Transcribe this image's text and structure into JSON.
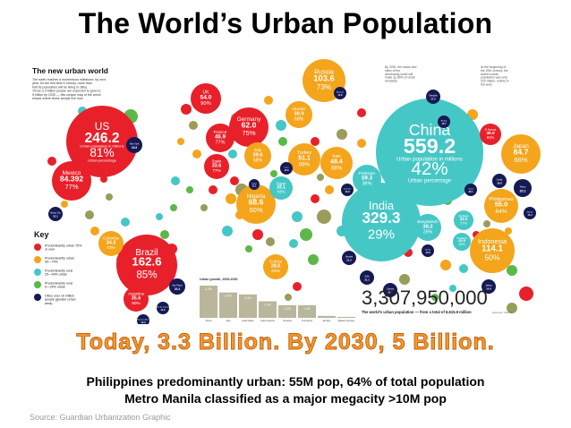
{
  "slide": {
    "title": "The World’s Urban Population",
    "headline": "Today, 3.3 Billion. By 2030, 5 Billion.",
    "line1": "Philippines predominantly urban: 55M pop, 64% of total population",
    "line2": "Metro Manila classified as a major megacity >10M pop",
    "source": "Source: Guardian Urbanization Graphic"
  },
  "figure": {
    "title": "The new urban world",
    "intro": "The earth reaches a momentous milestone: by next year, for the first time in history, more than half its population will be living in cities. Those 3.3 billion people are expected to grow to 5 billion by 2030 — this unique map of the world shows where those people live now",
    "note_left": "By 2030, the towns and cities of the developing world will make up 80% of urban humanity",
    "note_right": "At the beginning of the 20th century, the world's urban population was only 220 million, mainly in the west",
    "total": "3,307,950,000",
    "total_caption": "The world's urban population — from a total of 6,615.9 million",
    "credit": "Sources: UNFPA",
    "colors": {
      "u75": "#e8202a",
      "u50": "#f4a51c",
      "r25": "#45c7c6",
      "r0": "#5bb848",
      "mega": "#151a55",
      "small": "#9a9c5c"
    },
    "key": {
      "title": "Key",
      "items": [
        {
          "label": "Predominantly urban 75% or over",
          "color": "#e8202a"
        },
        {
          "label": "Predominantly urban 50—74%",
          "color": "#f4a51c"
        },
        {
          "label": "Predominantly rural 25—49% urban",
          "color": "#45c7c6"
        },
        {
          "label": "Predominantly rural 0—24% urban",
          "color": "#5bb848"
        },
        {
          "label": "Cities over 10 million people (greater urban area)",
          "color": "#151a55"
        }
      ]
    },
    "countries": [
      {
        "name": "China",
        "value": "559.2",
        "pct": "42%",
        "color": "#45c7c6",
        "caption": "Urban population in millions",
        "cap2": "Urban percentage"
      },
      {
        "name": "India",
        "value": "329.3",
        "pct": "29%",
        "color": "#45c7c6"
      },
      {
        "name": "US",
        "value": "246.2",
        "pct": "81%",
        "color": "#e8202a",
        "caption": "Urban population in millions",
        "cap2": "Urban percentage"
      },
      {
        "name": "Brazil",
        "value": "162.6",
        "pct": "85%",
        "color": "#e8202a"
      },
      {
        "name": "Russia",
        "value": "103.6",
        "pct": "73%",
        "color": "#f4a51c"
      },
      {
        "name": "Indonesia",
        "value": "114.1",
        "pct": "50%",
        "color": "#f4a51c"
      },
      {
        "name": "Mexico",
        "value": "84.392",
        "pct": "77%",
        "color": "#e8202a"
      },
      {
        "name": "Japan",
        "value": "84.7",
        "pct": "66%",
        "color": "#f4a51c"
      },
      {
        "name": "Germany",
        "value": "62.0",
        "pct": "75%",
        "color": "#e8202a"
      },
      {
        "name": "Nigeria",
        "value": "68.6",
        "pct": "50%",
        "color": "#f4a51c"
      },
      {
        "name": "Philippines",
        "value": "55.0",
        "pct": "64%",
        "color": "#f4a51c"
      },
      {
        "name": "UK",
        "value": "54.0",
        "pct": "90%",
        "color": "#e8202a"
      },
      {
        "name": "Turkey",
        "value": "51.1",
        "pct": "68%",
        "color": "#f4a51c"
      },
      {
        "name": "Iran",
        "value": "48.4",
        "pct": "68%",
        "color": "#f4a51c"
      },
      {
        "name": "France",
        "value": "46.9",
        "pct": "77%",
        "color": "#e8202a"
      },
      {
        "name": "Pakistan",
        "value": "59.3",
        "pct": "36%",
        "color": "#45c7c6"
      },
      {
        "name": "Bangladesh",
        "value": "38.2",
        "pct": "26%",
        "color": "#45c7c6"
      },
      {
        "name": "Italy",
        "value": "39.6",
        "pct": "68%",
        "color": "#f4a51c"
      },
      {
        "name": "Spain",
        "value": "33.6",
        "pct": "77%",
        "color": "#e8202a"
      },
      {
        "name": "Ukraine",
        "value": "30.9",
        "pct": "68%",
        "color": "#f4a51c"
      },
      {
        "name": "Colombia",
        "value": "34.3",
        "pct": "73%",
        "color": "#f4a51c"
      },
      {
        "name": "Argentina",
        "value": "35.6",
        "pct": "90%",
        "color": "#e8202a"
      },
      {
        "name": "Egypt",
        "value": "33.1",
        "pct": "43%",
        "color": "#45c7c6"
      },
      {
        "name": "S Africa",
        "value": "28.6",
        "pct": "60%",
        "color": "#f4a51c"
      },
      {
        "name": "S Korea",
        "value": "39.0",
        "pct": "81%",
        "color": "#e8202a"
      },
      {
        "name": "Vietnam",
        "value": "23.3",
        "pct": "27%",
        "color": "#45c7c6"
      },
      {
        "name": "Thailand",
        "value": "20.9",
        "pct": "33%",
        "color": "#45c7c6"
      }
    ],
    "cities": [
      {
        "name": "New York",
        "value": "18.8"
      },
      {
        "name": "Mexico City",
        "value": "22.1"
      },
      {
        "name": "Sao Paulo",
        "value": "20.4"
      },
      {
        "name": "Rio de Janeiro",
        "value": "11.2"
      },
      {
        "name": "Buenos Aires",
        "value": "13.3"
      },
      {
        "name": "Moscow",
        "value": "11.6"
      },
      {
        "name": "Shanghai",
        "value": "17.2"
      },
      {
        "name": "Beijing",
        "value": "12.7"
      },
      {
        "name": "Tokyo",
        "value": "35.2"
      },
      {
        "name": "Osaka",
        "value": "18.8"
      },
      {
        "name": "Seoul",
        "value": "23.1"
      },
      {
        "name": "Manila",
        "value": "15.4"
      },
      {
        "name": "Jakarta",
        "value": "14.9"
      },
      {
        "name": "Mumbai",
        "value": "21.3"
      },
      {
        "name": "Delhi",
        "value": "21.1"
      },
      {
        "name": "Calcutta",
        "value": "15.5"
      },
      {
        "name": "Dhaka",
        "value": "13.8"
      },
      {
        "name": "Karachi",
        "value": "14.8"
      },
      {
        "name": "Cairo",
        "value": "15.6"
      },
      {
        "name": "Lagos",
        "value": "11.1"
      }
    ],
    "growth": {
      "title": "Urban growth, 2005-2030",
      "bars": [
        {
          "label": "Africa",
          "value": 3.3
        },
        {
          "label": "Asia",
          "value": 2.6
        },
        {
          "label": "Arab States",
          "value": 2.4
        },
        {
          "label": "Latin America",
          "value": 1.7
        },
        {
          "label": "Oceania",
          "value": 1.3
        },
        {
          "label": "N America",
          "value": 1.3
        },
        {
          "label": "Europe",
          "value": 0.2
        },
        {
          "label": "Eastern Europe",
          "value": -0.1
        }
      ]
    }
  }
}
